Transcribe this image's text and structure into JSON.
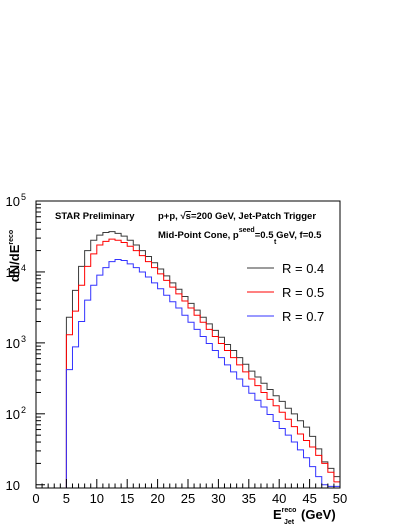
{
  "chart_data": {
    "type": "step-histogram",
    "y_scale": "log",
    "xlim": [
      0,
      50
    ],
    "ylim": [
      9,
      100000
    ],
    "x_ticks": [
      0,
      5,
      10,
      15,
      20,
      25,
      30,
      35,
      40,
      45,
      50
    ],
    "x_tick_labels": [
      "0",
      "5",
      "10",
      "15",
      "20",
      "25",
      "30",
      "35",
      "40",
      "45",
      "50"
    ],
    "y_ticks": [
      {
        "value": 10,
        "base": "10",
        "exp": ""
      },
      {
        "value": 100,
        "base": "10",
        "exp": "2"
      },
      {
        "value": 1000,
        "base": "10",
        "exp": "3"
      },
      {
        "value": 10000,
        "base": "10",
        "exp": "4"
      },
      {
        "value": 100000,
        "base": "10",
        "exp": "5"
      }
    ],
    "xlabel": {
      "main": "E",
      "sup": "reco",
      "sub": "Jet",
      "unit": " (GeV)"
    },
    "ylabel": {
      "main": "dN/dE",
      "sup": "reco"
    },
    "annotations": {
      "prelim": "STAR Preliminary",
      "collision_pre": "p+p, ",
      "sqrt_sym": "√",
      "sqrt_s": "s",
      "collision_post": "=200 GeV, Jet-Patch Trigger",
      "algo_pre": "Mid-Point Cone, p",
      "algo_sup": "seed",
      "algo_sub": "t",
      "algo_post": "=0.5 GeV, f=0.5"
    },
    "legend_position": "top-right",
    "legend_line_label": "R = ",
    "bin_width": 1,
    "series": [
      {
        "name": "0.4",
        "color": "#3a3a3a",
        "bin_low_edges": [
          5,
          6,
          7,
          8,
          9,
          10,
          11,
          12,
          13,
          14,
          15,
          16,
          17,
          18,
          19,
          20,
          21,
          22,
          23,
          24,
          25,
          26,
          27,
          28,
          29,
          30,
          31,
          32,
          33,
          34,
          35,
          36,
          37,
          38,
          39,
          40,
          41,
          42,
          43,
          44,
          45,
          46,
          47,
          48,
          49
        ],
        "values": [
          2300,
          5500,
          12000,
          20000,
          28000,
          33000,
          36000,
          37000,
          35000,
          32000,
          28000,
          24000,
          20000,
          16500,
          13500,
          11000,
          8800,
          7000,
          5700,
          4500,
          3600,
          2900,
          2300,
          1850,
          1500,
          1200,
          950,
          780,
          620,
          500,
          400,
          330,
          270,
          220,
          180,
          150,
          120,
          100,
          80,
          65,
          48,
          32,
          21,
          17,
          13
        ]
      },
      {
        "name": "0.5",
        "color": "#ff0000",
        "bin_low_edges": [
          5,
          6,
          7,
          8,
          9,
          10,
          11,
          12,
          13,
          14,
          15,
          16,
          17,
          18,
          19,
          20,
          21,
          22,
          23,
          24,
          25,
          26,
          27,
          28,
          29,
          30,
          31,
          32,
          33,
          34,
          35,
          36,
          37,
          38,
          39,
          40,
          41,
          42,
          43,
          44,
          45,
          46,
          47,
          48,
          49
        ],
        "values": [
          1300,
          2800,
          6500,
          12000,
          18000,
          24000,
          27000,
          29000,
          28000,
          26000,
          23000,
          20000,
          17000,
          14000,
          11500,
          9400,
          7600,
          6100,
          4900,
          3900,
          3100,
          2450,
          1950,
          1550,
          1230,
          980,
          780,
          620,
          490,
          390,
          310,
          250,
          200,
          160,
          130,
          105,
          84,
          66,
          52,
          42,
          34,
          26,
          20,
          15,
          11
        ]
      },
      {
        "name": "0.7",
        "color": "#3333ff",
        "bin_low_edges": [
          5,
          6,
          7,
          8,
          9,
          10,
          11,
          12,
          13,
          14,
          15,
          16,
          17,
          18,
          19,
          20,
          21,
          22,
          23,
          24,
          25,
          26,
          27,
          28,
          29,
          30,
          31,
          32,
          33,
          34,
          35,
          36,
          37,
          38,
          39,
          40,
          41,
          42,
          43,
          44,
          45,
          46,
          47,
          48,
          49
        ],
        "values": [
          420,
          880,
          2000,
          4000,
          6500,
          9000,
          11500,
          14000,
          15000,
          14500,
          13000,
          11500,
          10000,
          8500,
          7000,
          5800,
          4700,
          3800,
          3100,
          2450,
          1950,
          1550,
          1230,
          980,
          780,
          620,
          490,
          390,
          310,
          245,
          195,
          155,
          125,
          98,
          78,
          62,
          50,
          40,
          31,
          24,
          18,
          13,
          10,
          9.5,
          9.5
        ]
      }
    ]
  }
}
